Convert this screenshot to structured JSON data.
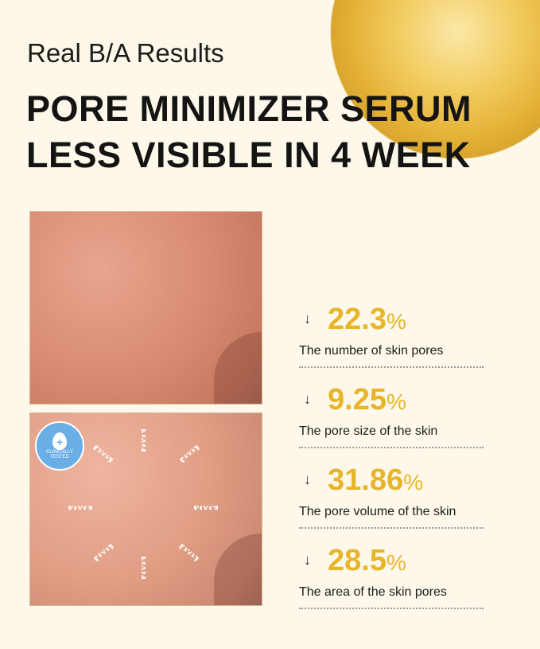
{
  "header": {
    "subtitle": "Real B/A Results",
    "title_line1": "PORE MINIMIZER SERUM",
    "title_line2": "LESS VISIBLE IN 4 WEEK"
  },
  "badge": {
    "text": "CLINICALLY TESTED",
    "icon": "drop-plus-icon",
    "color": "#6aaee6"
  },
  "accent_color": "#e8b52a",
  "stats": [
    {
      "arrow": "↓",
      "value": "22.3",
      "unit": "%",
      "label": "The number of skin pores"
    },
    {
      "arrow": "↓",
      "value": "9.25",
      "unit": "%",
      "label": "The pore size of the skin"
    },
    {
      "arrow": "↓",
      "value": "31.86",
      "unit": "%",
      "label": "The pore volume of the skin"
    },
    {
      "arrow": "↓",
      "value": "28.5",
      "unit": "%",
      "label": "The area of the skin pores"
    }
  ]
}
